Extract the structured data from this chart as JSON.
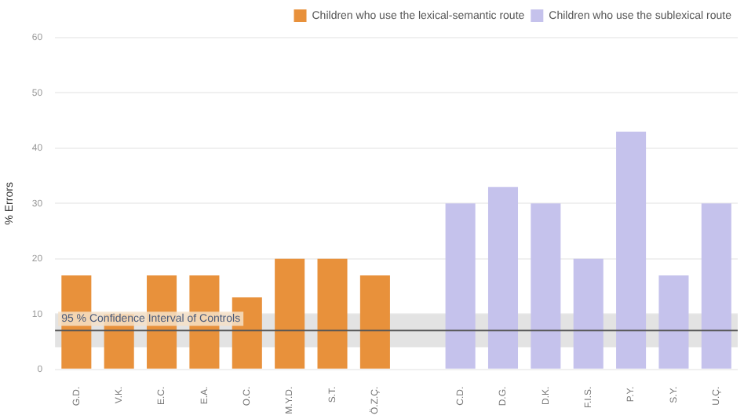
{
  "chart_data": {
    "type": "bar",
    "ylabel": "% Errors",
    "categories": [
      "G.D.",
      "V.K.",
      "E.C.",
      "E.A.",
      "O.C.",
      "M.Y.D.",
      "S.T.",
      "Ö.Z.Ç.",
      null,
      "C.D.",
      "D.G.",
      "D.K.",
      "F.I.S.",
      "P.Y.",
      "S.Y.",
      "U.Ç."
    ],
    "series": [
      {
        "name": "Children who use the lexical-semantic route",
        "color": "#e8913b",
        "values": [
          17,
          10,
          17,
          17,
          13,
          20,
          20,
          17,
          null,
          null,
          null,
          null,
          null,
          null,
          null,
          null
        ]
      },
      {
        "name": "Children who use the sublexical route",
        "color": "#c5c2ec",
        "values": [
          null,
          null,
          null,
          null,
          null,
          null,
          null,
          null,
          null,
          30,
          33,
          30,
          20,
          43,
          17,
          30
        ]
      }
    ],
    "ylim": [
      0,
      60
    ],
    "yticks": [
      0,
      10,
      20,
      30,
      40,
      50,
      60
    ],
    "grid": "y",
    "legend": "top right",
    "ref_lines": [
      {
        "axis": "y",
        "value": 7,
        "label": "95 % Confidence Interval of Controls",
        "color": "#555555"
      }
    ],
    "bands": [
      {
        "axis": "y",
        "from": 4,
        "to": 10,
        "color": "#e3e3e3"
      }
    ]
  }
}
